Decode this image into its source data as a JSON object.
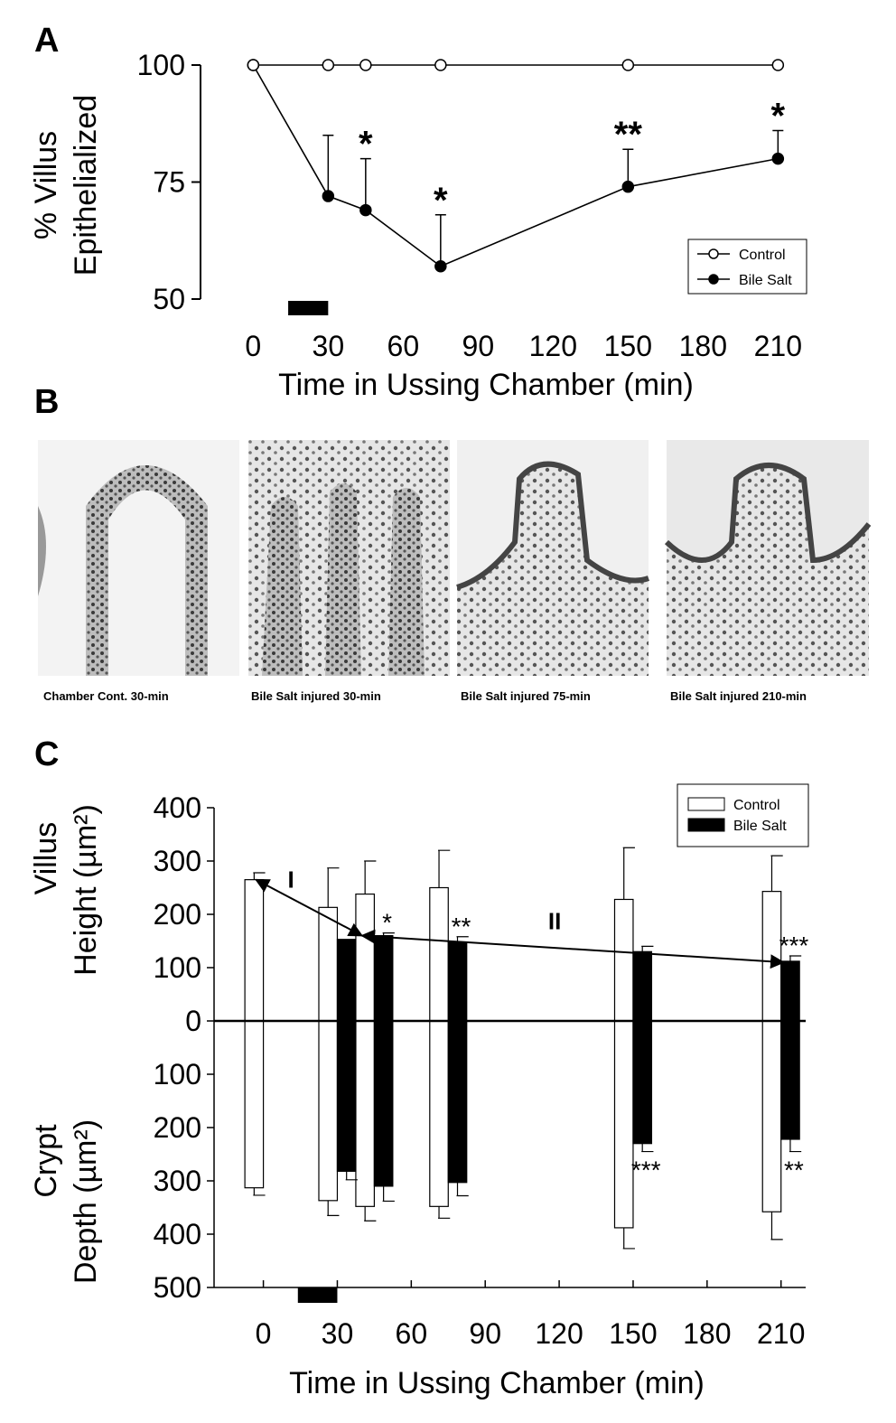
{
  "panel_labels": [
    "A",
    "B",
    "C"
  ],
  "chart_data": [
    {
      "type": "line",
      "x_label": "Time in Ussing Chamber (min)",
      "y_label": [
        "% Villus",
        "Epithelialized"
      ],
      "x": [
        0,
        30,
        45,
        75,
        150,
        210
      ],
      "series": [
        {
          "name": "Bile Salt",
          "color": "#000000",
          "marker": "filled",
          "values": [
            100,
            72,
            69,
            57,
            74,
            80
          ],
          "errors": [
            null,
            13,
            11,
            11,
            8,
            6
          ],
          "significance": [
            null,
            null,
            "*",
            "*",
            "**",
            "*"
          ]
        },
        {
          "name": "Control",
          "color": "#000000",
          "marker": "open",
          "values": [
            100,
            100,
            100,
            100,
            100,
            100
          ]
        }
      ],
      "xlim": [
        -20,
        220
      ],
      "xticks": [
        0,
        30,
        60,
        90,
        120,
        150,
        180,
        210
      ],
      "ylim": [
        50,
        100
      ],
      "yticks": [
        50,
        75,
        100
      ],
      "legend": "lower right",
      "exposure": [
        14,
        30
      ]
    },
    {
      "type": "bar",
      "x_label": "Time in Ussing Chamber (min)",
      "y_label_upper": [
        "Villus",
        "Height  (µm²)"
      ],
      "y_label_lower": [
        "Crypt",
        "Depth (µm²)"
      ],
      "x": [
        0,
        30,
        45,
        75,
        150,
        210
      ],
      "series": [
        {
          "name": "Control",
          "color": "#ffffff",
          "villus": [
            265,
            213,
            238,
            250,
            228,
            243
          ],
          "villus_err": [
            13,
            74,
            62,
            70,
            97,
            67
          ],
          "crypt": [
            -313,
            -337,
            -348,
            -348,
            -388,
            -358
          ],
          "crypt_err": [
            14,
            28,
            27,
            22,
            39,
            52
          ]
        },
        {
          "name": "Bile Salt",
          "color": "#000000",
          "villus": [
            null,
            153,
            160,
            148,
            130,
            112
          ],
          "villus_err": [
            null,
            null,
            5,
            10,
            10,
            10
          ],
          "crypt": [
            null,
            -282,
            -310,
            -303,
            -230,
            -222
          ],
          "crypt_err": [
            null,
            16,
            28,
            25,
            15,
            23
          ],
          "villus_significance": [
            null,
            null,
            "*",
            "**",
            null,
            "***"
          ],
          "crypt_significance": [
            null,
            null,
            null,
            null,
            "***",
            "**"
          ]
        }
      ],
      "trends": [
        {
          "label": "I",
          "from": [
            -3,
            265
          ],
          "to": [
            40,
            160
          ]
        },
        {
          "label": "II",
          "from": [
            40,
            160
          ],
          "to": [
            211,
            110
          ]
        }
      ],
      "xlim": [
        -20,
        220
      ],
      "xticks": [
        0,
        30,
        60,
        90,
        120,
        150,
        180,
        210
      ],
      "ylim": [
        -500,
        400
      ],
      "yticks": [
        {
          "value": -500,
          "label": "500"
        },
        {
          "value": -400,
          "label": "400"
        },
        {
          "value": -300,
          "label": "300"
        },
        {
          "value": -200,
          "label": "200"
        },
        {
          "value": -100,
          "label": "100"
        },
        0,
        100,
        200,
        300,
        400
      ],
      "legend": "upper right",
      "exposure": [
        14,
        30
      ]
    }
  ],
  "micrographs": {
    "captions": [
      "Chamber Cont. 30-min",
      "Bile Salt injured 30-min",
      "Bile Salt injured 75-min",
      "Bile Salt injured 210-min"
    ]
  }
}
